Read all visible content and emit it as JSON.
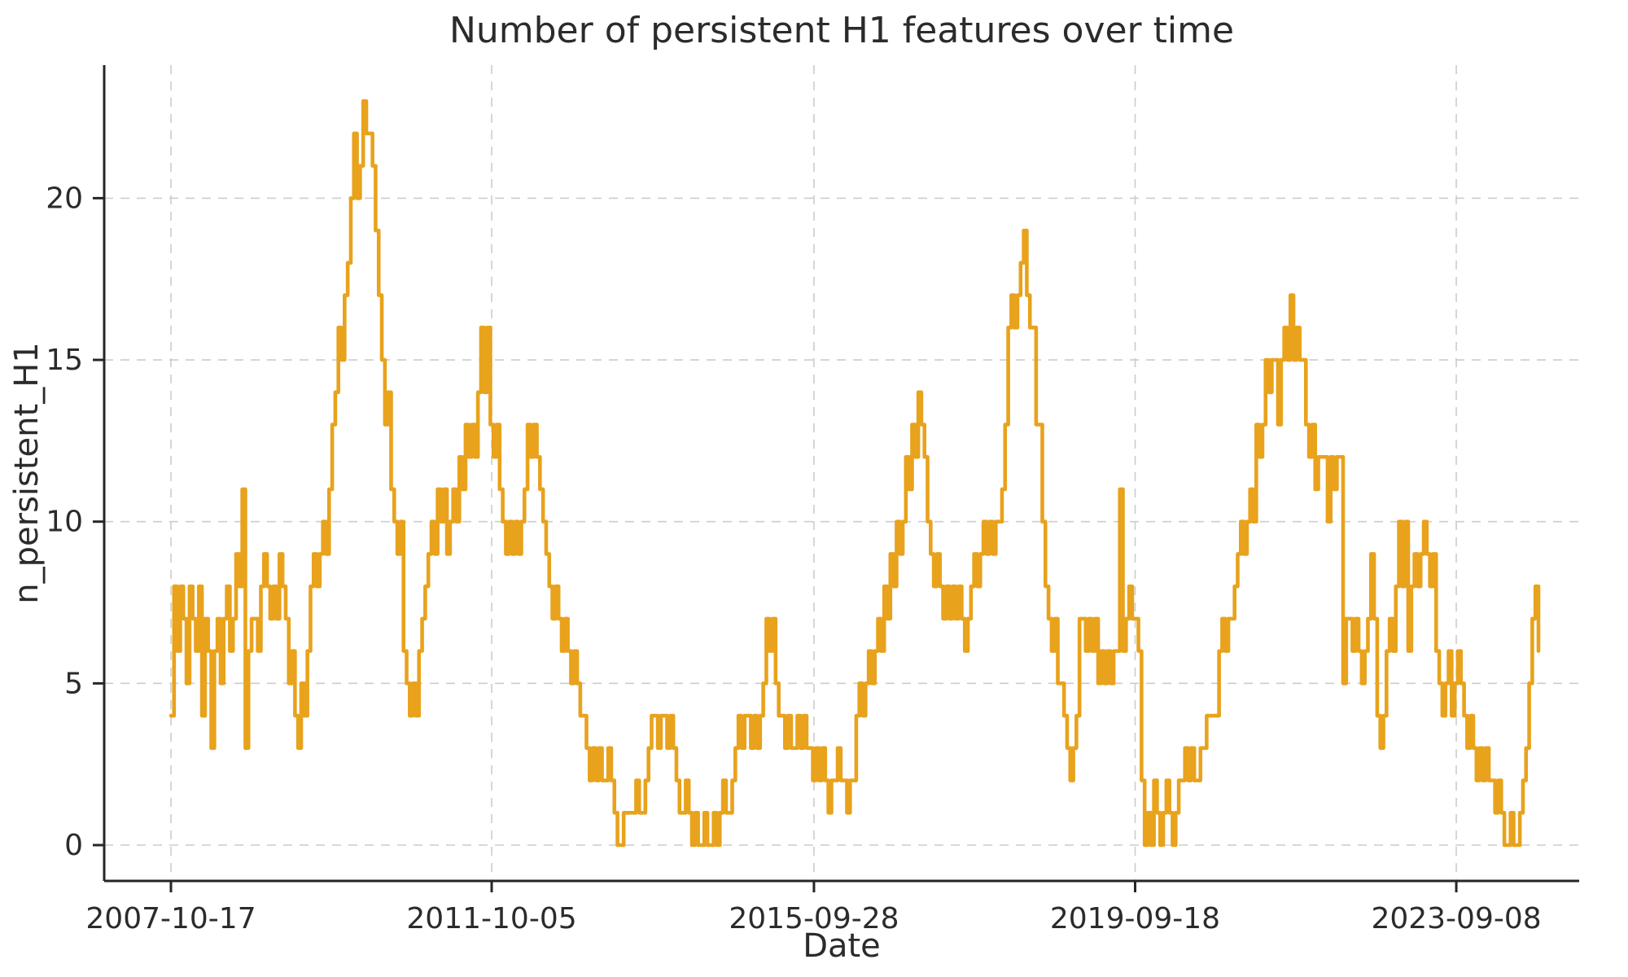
{
  "chart_data": {
    "type": "line",
    "title": "Number of persistent H1 features over time",
    "xlabel": "Date",
    "ylabel": "n_persistent_H1",
    "x_start_date": "2007-10-17",
    "x_step_days": 14,
    "x_tick_labels": [
      "2007-10-17",
      "2011-10-05",
      "2015-09-28",
      "2019-09-18",
      "2023-09-08"
    ],
    "x_tick_indices": [
      0,
      103.43,
      207.36,
      310.93,
      414.5
    ],
    "y_ticks": [
      0,
      5,
      10,
      15,
      20
    ],
    "ylim": [
      -1.1,
      24.1
    ],
    "grid": true,
    "line_color": "#E8A21C",
    "grid_color": "#cccccc",
    "spine_color": "#262626",
    "text_color": "#2b2b2b",
    "series": [
      {
        "name": "n_persistent_H1",
        "values": [
          4,
          8,
          6,
          8,
          7,
          5,
          8,
          7,
          6,
          8,
          4,
          7,
          6,
          3,
          6,
          7,
          5,
          7,
          8,
          6,
          7,
          9,
          8,
          11,
          3,
          6,
          7,
          7,
          6,
          8,
          9,
          8,
          7,
          8,
          7,
          9,
          8,
          7,
          5,
          6,
          4,
          3,
          5,
          4,
          6,
          8,
          9,
          8,
          9,
          10,
          9,
          11,
          13,
          14,
          16,
          15,
          17,
          18,
          20,
          22,
          20,
          21,
          23,
          22,
          22,
          21,
          19,
          17,
          15,
          13,
          14,
          11,
          10,
          9,
          10,
          6,
          5,
          4,
          5,
          4,
          6,
          7,
          8,
          9,
          10,
          9,
          11,
          10,
          11,
          9,
          10,
          11,
          10,
          12,
          11,
          13,
          12,
          13,
          12,
          14,
          16,
          14,
          16,
          13,
          12,
          13,
          11,
          10,
          9,
          10,
          9,
          10,
          9,
          10,
          11,
          13,
          12,
          13,
          12,
          11,
          10,
          9,
          8,
          7,
          8,
          7,
          6,
          7,
          6,
          5,
          6,
          5,
          4,
          4,
          3,
          2,
          3,
          2,
          3,
          2,
          2,
          3,
          2,
          1,
          0,
          0,
          1,
          1,
          1,
          1,
          2,
          1,
          1,
          2,
          3,
          4,
          4,
          3,
          4,
          4,
          3,
          4,
          3,
          2,
          1,
          1,
          2,
          1,
          0,
          1,
          0,
          0,
          1,
          0,
          0,
          1,
          0,
          1,
          2,
          1,
          1,
          2,
          3,
          4,
          3,
          4,
          4,
          3,
          4,
          3,
          4,
          5,
          7,
          6,
          7,
          5,
          4,
          4,
          3,
          4,
          3,
          3,
          4,
          3,
          4,
          3,
          3,
          2,
          3,
          2,
          3,
          2,
          1,
          2,
          2,
          3,
          2,
          2,
          1,
          2,
          2,
          4,
          5,
          4,
          5,
          6,
          5,
          6,
          7,
          6,
          8,
          7,
          9,
          8,
          10,
          9,
          10,
          12,
          11,
          13,
          12,
          14,
          13,
          12,
          10,
          9,
          8,
          9,
          8,
          7,
          8,
          7,
          8,
          7,
          8,
          7,
          6,
          7,
          8,
          9,
          8,
          9,
          10,
          9,
          10,
          9,
          10,
          10,
          11,
          13,
          16,
          17,
          16,
          17,
          18,
          19,
          17,
          16,
          16,
          13,
          13,
          10,
          8,
          7,
          6,
          7,
          5,
          5,
          4,
          3,
          2,
          3,
          4,
          7,
          7,
          6,
          7,
          6,
          7,
          5,
          6,
          5,
          6,
          5,
          6,
          6,
          11,
          6,
          7,
          8,
          7,
          7,
          6,
          2,
          0,
          1,
          0,
          2,
          1,
          0,
          1,
          2,
          1,
          0,
          1,
          2,
          2,
          3,
          2,
          3,
          2,
          2,
          3,
          3,
          4,
          4,
          4,
          4,
          6,
          7,
          6,
          7,
          7,
          8,
          9,
          10,
          9,
          10,
          11,
          10,
          13,
          12,
          13,
          15,
          14,
          15,
          15,
          13,
          15,
          16,
          15,
          17,
          15,
          16,
          15,
          15,
          13,
          12,
          13,
          11,
          12,
          12,
          12,
          10,
          12,
          11,
          12,
          12,
          5,
          7,
          7,
          6,
          7,
          6,
          5,
          6,
          7,
          9,
          7,
          4,
          3,
          4,
          6,
          7,
          6,
          8,
          10,
          8,
          10,
          6,
          8,
          9,
          8,
          9,
          10,
          9,
          8,
          9,
          6,
          5,
          4,
          5,
          6,
          4,
          5,
          6,
          5,
          4,
          3,
          4,
          3,
          2,
          3,
          2,
          3,
          2,
          2,
          1,
          2,
          1,
          0,
          0,
          1,
          0,
          0,
          1,
          2,
          3,
          5,
          7,
          8,
          6
        ]
      }
    ]
  },
  "layout_hints": {
    "legend": "none"
  }
}
